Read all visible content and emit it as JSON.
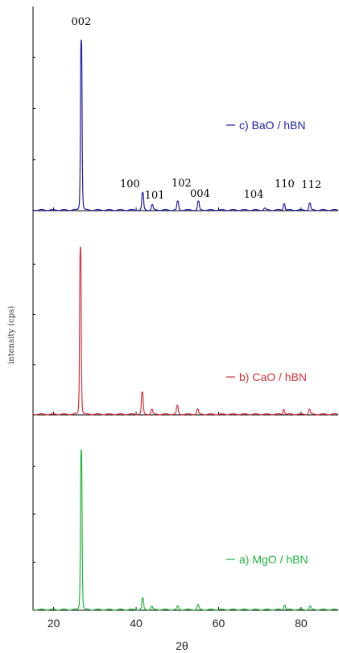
{
  "chart_data": {
    "type": "line",
    "title": "",
    "xlabel": "2θ",
    "ylabel": "intensity (cps)",
    "xlim": [
      15,
      89
    ],
    "xticks": [
      20,
      40,
      60,
      80
    ],
    "grid": false,
    "panels": [
      {
        "name": "c) BaO / hBN",
        "color": "#1f1fa8",
        "ylim": [
          0,
          1.2
        ],
        "peaks": [
          {
            "x": 26.7,
            "y": 1.0
          },
          {
            "x": 41.6,
            "y": 0.1
          },
          {
            "x": 43.9,
            "y": 0.03
          },
          {
            "x": 50.1,
            "y": 0.05
          },
          {
            "x": 55.1,
            "y": 0.05
          },
          {
            "x": 71.2,
            "y": 0.01
          },
          {
            "x": 75.9,
            "y": 0.04
          },
          {
            "x": 82.1,
            "y": 0.04
          }
        ],
        "annotations": [
          {
            "text": "002",
            "x": 26.7
          },
          {
            "text": "100",
            "x": 38.5
          },
          {
            "text": "101",
            "x": 44.5
          },
          {
            "text": "102",
            "x": 51.0
          },
          {
            "text": "004",
            "x": 55.5
          },
          {
            "text": "104",
            "x": 68.5
          },
          {
            "text": "110",
            "x": 76.0
          },
          {
            "text": "112",
            "x": 82.5
          }
        ]
      },
      {
        "name": "b) CaO / hBN",
        "color": "#d9333b",
        "ylim": [
          0,
          1.2
        ],
        "peaks": [
          {
            "x": 26.5,
            "y": 1.0
          },
          {
            "x": 41.5,
            "y": 0.13
          },
          {
            "x": 43.8,
            "y": 0.03
          },
          {
            "x": 50.0,
            "y": 0.05
          },
          {
            "x": 54.9,
            "y": 0.03
          },
          {
            "x": 75.8,
            "y": 0.03
          },
          {
            "x": 82.0,
            "y": 0.03
          }
        ]
      },
      {
        "name": "a) MgO / hBN",
        "color": "#22b53c",
        "ylim": [
          0,
          1.2
        ],
        "peaks": [
          {
            "x": 26.7,
            "y": 1.0
          },
          {
            "x": 41.6,
            "y": 0.07
          },
          {
            "x": 43.8,
            "y": 0.02
          },
          {
            "x": 50.1,
            "y": 0.02
          },
          {
            "x": 55.0,
            "y": 0.03
          },
          {
            "x": 76.0,
            "y": 0.03
          },
          {
            "x": 82.2,
            "y": 0.02
          }
        ]
      }
    ]
  }
}
